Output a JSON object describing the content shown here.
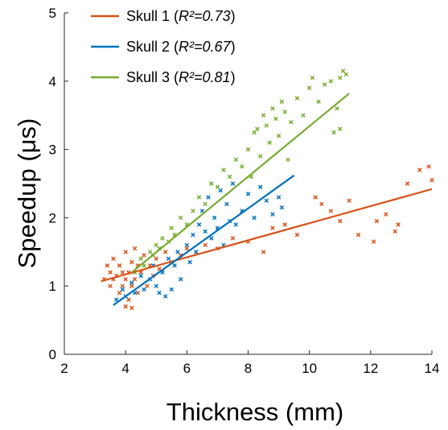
{
  "chart_data": {
    "type": "scatter",
    "xlabel": "Thickness (mm)",
    "ylabel": "Speedup (μs)",
    "xlim": [
      2,
      14
    ],
    "ylim": [
      0,
      5
    ],
    "xticks": [
      2,
      4,
      6,
      8,
      10,
      12,
      14
    ],
    "yticks": [
      0,
      1,
      2,
      3,
      4,
      5
    ],
    "grid": false,
    "legend_position": "top-left",
    "series": [
      {
        "name": "Skull 1",
        "r2_label": "R²=0.73",
        "color": "#D95319",
        "fit": [
          [
            3.2,
            1.07
          ],
          [
            14.0,
            2.42
          ]
        ],
        "points": [
          [
            3.3,
            1.1
          ],
          [
            3.4,
            1.3
          ],
          [
            3.5,
            1.0
          ],
          [
            3.5,
            1.2
          ],
          [
            3.6,
            1.1
          ],
          [
            3.6,
            1.4
          ],
          [
            3.7,
            1.15
          ],
          [
            3.8,
            0.9
          ],
          [
            3.8,
            1.3
          ],
          [
            3.9,
            1.0
          ],
          [
            3.9,
            1.2
          ],
          [
            4.0,
            0.7
          ],
          [
            4.0,
            1.1
          ],
          [
            4.0,
            1.5
          ],
          [
            4.1,
            0.8
          ],
          [
            4.1,
            1.2
          ],
          [
            4.2,
            0.68
          ],
          [
            4.2,
            1.0
          ],
          [
            4.2,
            1.35
          ],
          [
            4.3,
            1.1
          ],
          [
            4.3,
            1.55
          ],
          [
            4.4,
            0.9
          ],
          [
            4.4,
            1.3
          ],
          [
            4.5,
            1.2
          ],
          [
            4.6,
            1.45
          ],
          [
            4.7,
            1.0
          ],
          [
            4.8,
            1.3
          ],
          [
            4.9,
            1.15
          ],
          [
            5.0,
            1.4
          ],
          [
            5.1,
            1.25
          ],
          [
            5.3,
            1.5
          ],
          [
            5.5,
            1.35
          ],
          [
            5.8,
            1.45
          ],
          [
            6.0,
            1.55
          ],
          [
            6.3,
            1.5
          ],
          [
            6.6,
            1.6
          ],
          [
            7.0,
            1.55
          ],
          [
            7.5,
            1.7
          ],
          [
            8.0,
            1.65
          ],
          [
            8.5,
            1.5
          ],
          [
            8.8,
            1.85
          ],
          [
            9.2,
            1.9
          ],
          [
            9.6,
            1.75
          ],
          [
            10.2,
            2.3
          ],
          [
            10.4,
            2.2
          ],
          [
            10.7,
            2.1
          ],
          [
            11.0,
            1.95
          ],
          [
            11.3,
            2.25
          ],
          [
            11.6,
            1.75
          ],
          [
            12.2,
            1.95
          ],
          [
            12.5,
            2.05
          ],
          [
            12.8,
            1.8
          ],
          [
            13.2,
            2.5
          ],
          [
            13.6,
            2.7
          ],
          [
            13.9,
            2.75
          ],
          [
            14.0,
            2.55
          ],
          [
            12.9,
            1.9
          ],
          [
            12.1,
            1.65
          ]
        ]
      },
      {
        "name": "Skull 2",
        "r2_label": "R²=0.67",
        "color": "#0072BD",
        "fit": [
          [
            3.6,
            0.72
          ],
          [
            9.5,
            2.62
          ]
        ],
        "points": [
          [
            3.7,
            0.8
          ],
          [
            3.9,
            0.95
          ],
          [
            4.0,
            0.85
          ],
          [
            4.2,
            1.05
          ],
          [
            4.3,
            0.9
          ],
          [
            4.5,
            1.15
          ],
          [
            4.6,
            0.95
          ],
          [
            4.8,
            1.1
          ],
          [
            4.9,
            1.3
          ],
          [
            5.0,
            1.0
          ],
          [
            5.1,
            0.9
          ],
          [
            5.2,
            1.2
          ],
          [
            5.3,
            0.85
          ],
          [
            5.4,
            1.4
          ],
          [
            5.5,
            0.95
          ],
          [
            5.6,
            1.3
          ],
          [
            5.7,
            1.5
          ],
          [
            5.8,
            1.1
          ],
          [
            6.0,
            1.6
          ],
          [
            6.1,
            1.35
          ],
          [
            6.2,
            1.75
          ],
          [
            6.3,
            1.5
          ],
          [
            6.4,
            1.9
          ],
          [
            6.5,
            2.1
          ],
          [
            6.6,
            1.8
          ],
          [
            6.7,
            2.3
          ],
          [
            6.8,
            1.7
          ],
          [
            6.9,
            2.0
          ],
          [
            7.0,
            1.85
          ],
          [
            7.1,
            2.4
          ],
          [
            7.2,
            1.6
          ],
          [
            7.3,
            2.2
          ],
          [
            7.4,
            1.95
          ],
          [
            7.5,
            2.5
          ],
          [
            7.6,
            1.9
          ],
          [
            7.8,
            2.1
          ],
          [
            8.0,
            2.35
          ],
          [
            8.2,
            2.0
          ],
          [
            8.4,
            2.45
          ],
          [
            8.6,
            2.25
          ],
          [
            8.8,
            2.05
          ],
          [
            9.0,
            2.3
          ],
          [
            9.1,
            2.15
          ]
        ]
      },
      {
        "name": "Skull 3",
        "r2_label": "R²=0.81",
        "color": "#77AC30",
        "fit": [
          [
            4.2,
            1.2
          ],
          [
            11.3,
            3.82
          ]
        ],
        "points": [
          [
            4.3,
            1.2
          ],
          [
            4.5,
            1.4
          ],
          [
            4.6,
            1.3
          ],
          [
            4.8,
            1.5
          ],
          [
            4.9,
            1.45
          ],
          [
            5.0,
            1.6
          ],
          [
            5.1,
            1.55
          ],
          [
            5.2,
            1.7
          ],
          [
            5.4,
            1.65
          ],
          [
            5.5,
            1.85
          ],
          [
            5.6,
            1.75
          ],
          [
            5.8,
            2.0
          ],
          [
            6.0,
            1.9
          ],
          [
            6.2,
            2.1
          ],
          [
            6.4,
            2.3
          ],
          [
            6.6,
            2.2
          ],
          [
            6.8,
            2.5
          ],
          [
            7.0,
            2.45
          ],
          [
            7.2,
            2.7
          ],
          [
            7.4,
            2.6
          ],
          [
            7.6,
            2.85
          ],
          [
            7.8,
            2.75
          ],
          [
            8.0,
            3.0
          ],
          [
            8.1,
            2.6
          ],
          [
            8.2,
            3.25
          ],
          [
            8.3,
            3.3
          ],
          [
            8.4,
            2.9
          ],
          [
            8.5,
            3.5
          ],
          [
            8.6,
            3.35
          ],
          [
            8.7,
            3.1
          ],
          [
            8.8,
            3.6
          ],
          [
            8.9,
            3.45
          ],
          [
            9.0,
            3.2
          ],
          [
            9.1,
            3.7
          ],
          [
            9.2,
            3.55
          ],
          [
            9.4,
            3.4
          ],
          [
            9.6,
            3.75
          ],
          [
            9.8,
            3.5
          ],
          [
            10.0,
            3.9
          ],
          [
            10.1,
            4.05
          ],
          [
            10.3,
            3.7
          ],
          [
            10.5,
            3.95
          ],
          [
            10.7,
            4.0
          ],
          [
            10.9,
            3.6
          ],
          [
            11.0,
            4.05
          ],
          [
            11.1,
            4.15
          ],
          [
            11.2,
            4.1
          ],
          [
            10.8,
            3.25
          ],
          [
            11.0,
            3.3
          ],
          [
            9.3,
            2.85
          ]
        ]
      }
    ]
  }
}
